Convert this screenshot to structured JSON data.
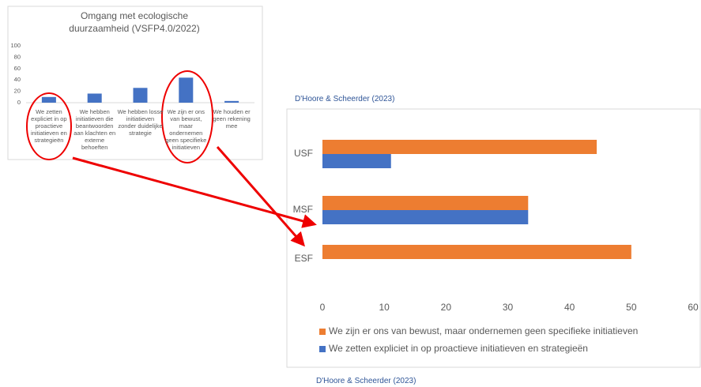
{
  "chart_data": [
    {
      "type": "bar",
      "title": "Omgang met ecologische duurzaamheid (VSFP4.0/2022)",
      "categories": [
        "We zetten expliciet in op proactieve initiatieven en strategieën",
        "We hebben initiatieven die beantwoorden aan klachten en externe behoeften",
        "We hebben losse initiatieven zonder duidelijke strategie",
        "We zijn er ons van bewust, maar ondernemen geen specifieke initiatieven",
        "We houden er geen rekening mee"
      ],
      "values": [
        10,
        16,
        26,
        44,
        3
      ],
      "color": "#4472c4",
      "ylim": [
        0,
        100
      ],
      "yticks": [
        0,
        20,
        40,
        60,
        80,
        100
      ],
      "grid": false
    },
    {
      "type": "hbar",
      "categories": [
        "USF",
        "MSF",
        "ESF"
      ],
      "series": [
        {
          "name": "We zijn er ons van bewust, maar ondernemen geen specifieke initiatieven",
          "color": "#ed7d31",
          "values": [
            44.4,
            33.3,
            50
          ]
        },
        {
          "name": "We zetten expliciet in op proactieve initiatieven en strategieën",
          "color": "#4472c4",
          "values": [
            11.1,
            33.3,
            0
          ]
        }
      ],
      "xlim": [
        0,
        60
      ],
      "xticks": [
        0,
        10,
        20,
        30,
        40,
        50,
        60
      ],
      "grid": false,
      "legend": "bottom"
    }
  ],
  "captions": [
    "D'Hoore & Scheerder (2023)",
    "D'Hoore & Scheerder (2023)"
  ]
}
